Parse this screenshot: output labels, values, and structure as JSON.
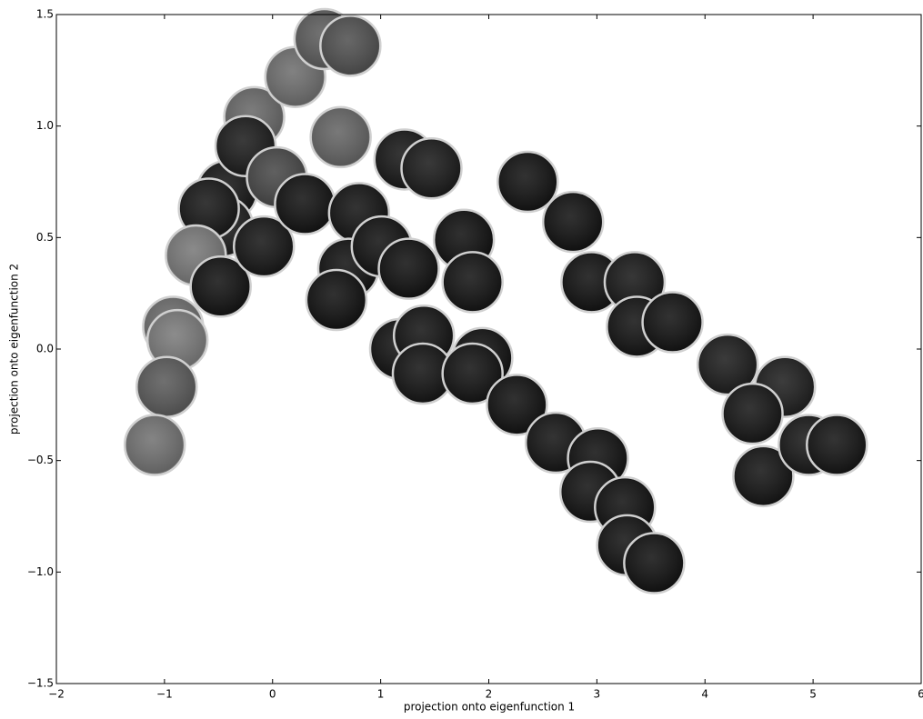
{
  "chart_data": {
    "type": "scatter",
    "xlabel": "projection onto eigenfunction 1",
    "ylabel": "projection onto eigenfunction 2",
    "x": [
      -0.42,
      -0.46,
      -0.59,
      -0.71,
      -0.48,
      -0.92,
      -0.88,
      -0.98,
      -1.09,
      -0.17,
      -0.25,
      0.21,
      0.48,
      0.72,
      0.63,
      -0.08,
      0.04,
      0.3,
      0.8,
      0.7,
      0.59,
      1.22,
      1.47,
      1.01,
      1.26,
      1.77,
      1.85,
      1.18,
      1.4,
      1.39,
      1.94,
      1.85,
      2.26,
      2.36,
      2.78,
      2.95,
      3.35,
      3.37,
      3.7,
      2.62,
      3.01,
      2.94,
      3.26,
      3.28,
      3.53,
      4.21,
      4.74,
      4.44,
      4.54,
      4.96,
      5.22
    ],
    "y": [
      0.71,
      0.55,
      0.63,
      0.42,
      0.28,
      0.1,
      0.04,
      -0.17,
      -0.43,
      1.04,
      0.91,
      1.22,
      1.39,
      1.36,
      0.95,
      0.46,
      0.77,
      0.65,
      0.61,
      0.36,
      0.22,
      0.85,
      0.81,
      0.46,
      0.36,
      0.49,
      0.3,
      0.0,
      0.06,
      -0.11,
      -0.04,
      -0.11,
      -0.25,
      0.75,
      0.57,
      0.3,
      0.3,
      0.1,
      0.12,
      -0.42,
      -0.49,
      -0.64,
      -0.71,
      -0.88,
      -0.96,
      -0.07,
      -0.17,
      -0.29,
      -0.57,
      -0.43,
      -0.43
    ],
    "colors": [
      "#1a1a1a",
      "#222222",
      "#1c1c1c",
      "#7a7a7a",
      "#161616",
      "#6e6e6e",
      "#7c7c7c",
      "#5c5c5c",
      "#737373",
      "#6a6a6a",
      "#202020",
      "#707070",
      "#5e5e5e",
      "#525252",
      "#666666",
      "#1a1a1a",
      "#4a4a4a",
      "#161616",
      "#181818",
      "#161616",
      "#151515",
      "#1b1b1b",
      "#1e1e1e",
      "#161616",
      "#151515",
      "#141414",
      "#171717",
      "#161616",
      "#181818",
      "#181818",
      "#151515",
      "#171717",
      "#151515",
      "#161616",
      "#151515",
      "#151515",
      "#1c1c1c",
      "#171717",
      "#161616",
      "#181818",
      "#151515",
      "#161616",
      "#151515",
      "#171717",
      "#151515",
      "#202020",
      "#222222",
      "#1a1a1a",
      "#181818",
      "#1c1c1c",
      "#181818"
    ],
    "xlim": [
      -2,
      6
    ],
    "ylim": [
      -1.5,
      1.5
    ],
    "xticks": [
      {
        "value": -2,
        "label": "−2"
      },
      {
        "value": -1,
        "label": "−1"
      },
      0,
      1,
      2,
      3,
      4,
      5,
      6
    ],
    "yticks": [
      {
        "value": -1.5,
        "label": "−1.5"
      },
      {
        "value": -1,
        "label": "−1.0"
      },
      {
        "value": -0.5,
        "label": "−0.5"
      },
      {
        "value": 0,
        "label": "0.0"
      },
      {
        "value": 0.5,
        "label": "0.5"
      },
      {
        "value": 1,
        "label": "1.0"
      },
      {
        "value": 1.5,
        "label": "1.5"
      }
    ]
  }
}
